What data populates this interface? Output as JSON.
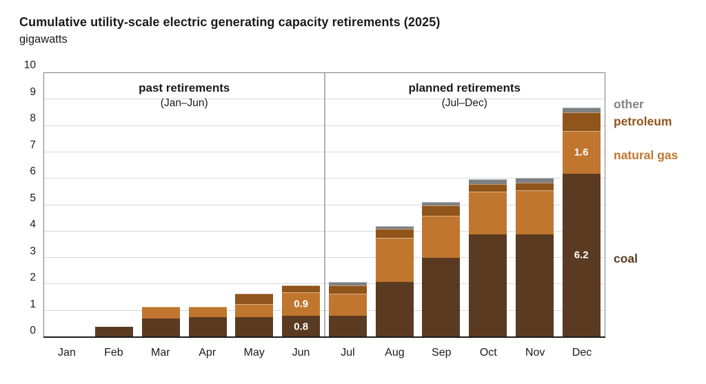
{
  "header": {
    "title": "Cumulative utility-scale electric generating capacity retirements (2025)",
    "subtitle": "gigawatts"
  },
  "chart_data": {
    "type": "bar",
    "stacked": true,
    "title": "Cumulative utility-scale electric generating capacity retirements (2025)",
    "ylabel": "gigawatts",
    "xlabel": "",
    "ylim": [
      0,
      10
    ],
    "ytick_step": 1,
    "grid": true,
    "legend_position": "right",
    "categories": [
      "Jan",
      "Feb",
      "Mar",
      "Apr",
      "May",
      "Jun",
      "Jul",
      "Aug",
      "Sep",
      "Oct",
      "Nov",
      "Dec"
    ],
    "series": [
      {
        "name": "coal",
        "color": "#5a3a21",
        "values": [
          0,
          0.4,
          0.7,
          0.75,
          0.75,
          0.8,
          0.8,
          2.1,
          3.0,
          3.9,
          3.9,
          6.2
        ]
      },
      {
        "name": "natural gas",
        "color": "#c0762f",
        "values": [
          0,
          0,
          0.45,
          0.4,
          0.5,
          0.9,
          0.85,
          1.65,
          1.6,
          1.6,
          1.65,
          1.6
        ]
      },
      {
        "name": "petroleum",
        "color": "#8f551b",
        "values": [
          0,
          0,
          0,
          0,
          0.4,
          0.25,
          0.3,
          0.35,
          0.4,
          0.3,
          0.3,
          0.7
        ]
      },
      {
        "name": "other",
        "color": "#7f8083",
        "values": [
          0,
          0,
          0,
          0,
          0,
          0,
          0.15,
          0.1,
          0.12,
          0.18,
          0.18,
          0.2
        ]
      }
    ],
    "annotations": {
      "sections": [
        {
          "label": "past retirements",
          "sublabel": "(Jan–Jun)"
        },
        {
          "label": "planned retirements",
          "sublabel": "(Jul–Dec)"
        }
      ],
      "bar_labels": [
        {
          "month": "Jun",
          "series": "coal",
          "text": "0.8"
        },
        {
          "month": "Jun",
          "series": "natural gas",
          "text": "0.9"
        },
        {
          "month": "Dec",
          "series": "coal",
          "text": "6.2"
        },
        {
          "month": "Dec",
          "series": "natural gas",
          "text": "1.6"
        }
      ],
      "legend": [
        {
          "label": "other",
          "series": "other"
        },
        {
          "label": "petroleum",
          "series": "petroleum"
        },
        {
          "label": "natural gas",
          "series": "natural gas"
        },
        {
          "label": "coal",
          "series": "coal"
        }
      ]
    },
    "colors": {
      "grid": "#d9d9d9",
      "frame": "#7f7f7f",
      "axis": "#1a1a1a",
      "divider": "#b0b0b0"
    }
  }
}
